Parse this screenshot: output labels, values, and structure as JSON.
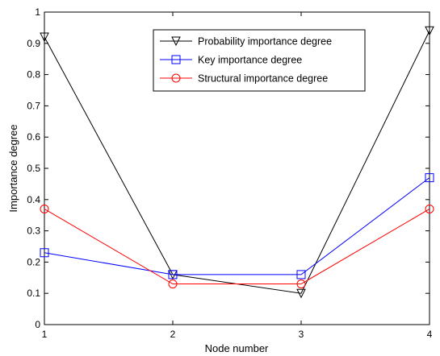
{
  "chart_data": {
    "type": "line",
    "xlabel": "Node number",
    "ylabel": "Importance degree",
    "xlim": [
      1,
      4
    ],
    "ylim": [
      0,
      1
    ],
    "x_ticks": [
      1,
      2,
      3,
      4
    ],
    "y_ticks": [
      0,
      0.1,
      0.2,
      0.3,
      0.4,
      0.5,
      0.6,
      0.7,
      0.8,
      0.9,
      1
    ],
    "x_tick_labels": [
      "1",
      "2",
      "3",
      "4"
    ],
    "y_tick_labels": [
      "0",
      "0.1",
      "0.2",
      "0.3",
      "0.4",
      "0.5",
      "0.6",
      "0.7",
      "0.8",
      "0.9",
      "1"
    ],
    "legend_position": "top-right",
    "grid": false,
    "x": [
      1,
      2,
      3,
      4
    ],
    "series": [
      {
        "name": "Probability importance degree",
        "color": "#000000",
        "marker": "triangle-down",
        "values": [
          0.92,
          0.16,
          0.1,
          0.94
        ]
      },
      {
        "name": "Key importance degree",
        "color": "#0000ff",
        "marker": "square",
        "values": [
          0.23,
          0.16,
          0.16,
          0.47
        ]
      },
      {
        "name": "Structural importance degree",
        "color": "#ff0000",
        "marker": "circle",
        "values": [
          0.37,
          0.13,
          0.13,
          0.37
        ]
      }
    ]
  }
}
